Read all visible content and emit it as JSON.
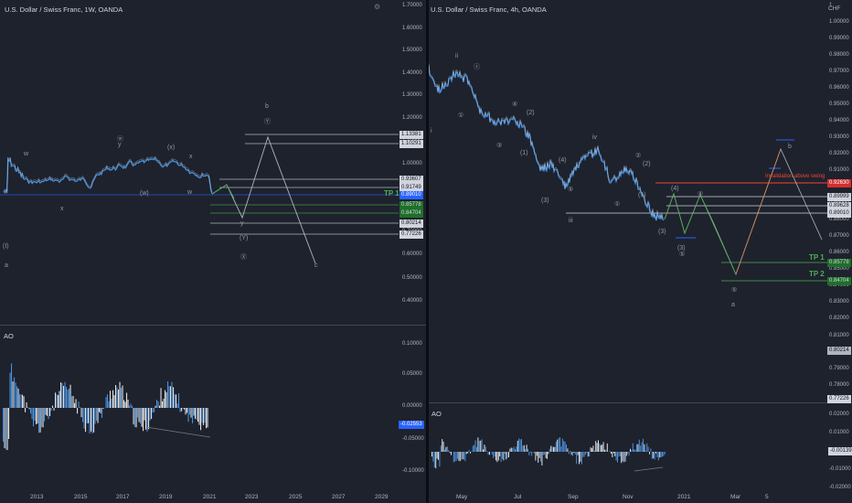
{
  "left": {
    "title": "U.S. Dollar / Swiss Franc, 1W, OANDA",
    "price_axis": [
      "1.70000",
      "1.60000",
      "1.50000",
      "1.40000",
      "1.30000",
      "1.20000",
      "1.10000",
      "1.00000",
      "0.90000",
      "0.80000",
      "0.70000",
      "0.60000",
      "0.50000",
      "0.40000"
    ],
    "tags": [
      {
        "text": "1.13381",
        "style": "tag-white"
      },
      {
        "text": "1.10291",
        "style": "tag-white"
      },
      {
        "text": "0.93607",
        "style": "tag-white"
      },
      {
        "text": "0.91749",
        "style": "tag-white"
      },
      {
        "text": "0.89010",
        "style": "tag-blue"
      },
      {
        "text": "0.85778",
        "style": "tag-green"
      },
      {
        "text": "0.84704",
        "style": "tag-green"
      },
      {
        "text": "0.80214",
        "style": "tag-white"
      },
      {
        "text": "0.77226",
        "style": "tag-white"
      }
    ],
    "tp_label": "TP 1",
    "wave_labels": [
      "(I)",
      "a",
      "w",
      "x",
      "y",
      "ⓦ",
      "(x)",
      "x",
      "(w)",
      "w",
      "b",
      "Ⓨ",
      "y",
      "(Y)",
      "Ⓧ",
      "c"
    ],
    "time_axis": [
      "2013",
      "2015",
      "2017",
      "2019",
      "2021",
      "2023",
      "2025",
      "2027",
      "2029"
    ],
    "ao": {
      "label": "AO",
      "axis": [
        "0.10000",
        "0.05000",
        "0.00000",
        "-0.05000",
        "-0.10000"
      ],
      "value_tag": "-0.02553"
    }
  },
  "right": {
    "title": "U.S. Dollar / Swiss Franc, 4h, OANDA",
    "currency": "CHF",
    "price_axis": [
      "1",
      "1.00000",
      "0.99000",
      "0.98000",
      "0.97000",
      "0.96000",
      "0.95000",
      "0.94000",
      "0.93000",
      "0.92000",
      "0.91000",
      "0.90000",
      "0.89000",
      "0.88000",
      "0.87000",
      "0.86000",
      "0.85000",
      "0.84000",
      "0.83000",
      "0.82000",
      "0.81000",
      "0.80000",
      "0.79000",
      "0.78000"
    ],
    "tags": [
      {
        "text": "0.92630",
        "style": "tag-red"
      },
      {
        "text": "0.89999",
        "style": "tag-white"
      },
      {
        "text": "0.89628",
        "style": "tag-white"
      },
      {
        "text": "0.89010",
        "style": "tag-white"
      },
      {
        "text": "0.85778",
        "style": "tag-green"
      },
      {
        "text": "0.84704",
        "style": "tag-green"
      },
      {
        "text": "0.80214",
        "style": "tag-grey"
      },
      {
        "text": "0.77226",
        "style": "tag-white"
      }
    ],
    "invalidation_label": "Invalidation above swing",
    "tp1_label": "TP 1",
    "tp2_label": "TP 2",
    "wave_labels": [
      "ii",
      "ⓩ",
      "i",
      "①",
      "③",
      "④",
      "(2)",
      "(1)",
      "(4)",
      "(3)",
      "⑤",
      "iii",
      "iv",
      "②",
      "(2)",
      "①",
      "(1)",
      "(3)",
      "④",
      "(4)",
      "(3)",
      "⑤",
      "⑤",
      "a",
      "b"
    ],
    "time_axis": [
      "May",
      "Jul",
      "Sep",
      "Nov",
      "2021",
      "Mar",
      "5"
    ],
    "ao": {
      "label": "AO",
      "axis": [
        "0.02000",
        "0.01000",
        "0.00000",
        "-0.01000",
        "-0.02000"
      ],
      "value_tag": "-0.00139"
    }
  }
}
